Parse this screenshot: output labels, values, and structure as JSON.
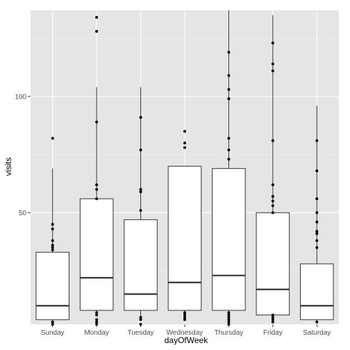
{
  "chart_data": {
    "type": "boxplot",
    "xlabel": "dayOfWeek",
    "ylabel": "visits",
    "ylim": [
      2,
      137
    ],
    "yticks": [
      50,
      100
    ],
    "y_tick_labels": [
      "50",
      "100"
    ],
    "grid": true,
    "background": "#e5e5e5",
    "categories": [
      "Sunday",
      "Monday",
      "Tuesday",
      "Wednesday",
      "Thursday",
      "Friday",
      "Saturday"
    ],
    "boxes": [
      {
        "q1": 4,
        "median": 10,
        "q3": 33,
        "whisker_low": 3,
        "whisker_high": 69,
        "outliers": [
          82,
          45,
          43,
          38,
          36,
          35,
          34,
          3,
          2
        ]
      },
      {
        "q1": 8,
        "median": 22,
        "q3": 56,
        "whisker_low": 7,
        "whisker_high": 104,
        "outliers": [
          134,
          128,
          89,
          62,
          60,
          56,
          7,
          6,
          4,
          3,
          2
        ]
      },
      {
        "q1": 8,
        "median": 15,
        "q3": 47,
        "whisker_low": 5,
        "whisker_high": 104,
        "outliers": [
          91,
          77,
          60,
          59,
          51,
          5,
          4,
          2
        ]
      },
      {
        "q1": 8,
        "median": 20,
        "q3": 70,
        "whisker_low": 7,
        "whisker_high": 70,
        "outliers": [
          85,
          80,
          78,
          7,
          6,
          5,
          4
        ]
      },
      {
        "q1": 8,
        "median": 23,
        "q3": 69,
        "whisker_low": 7,
        "whisker_high": 137,
        "outliers": [
          119,
          109,
          103,
          99,
          82,
          77,
          73,
          7,
          6,
          5,
          4,
          3,
          2
        ]
      },
      {
        "q1": 6,
        "median": 17,
        "q3": 50,
        "whisker_low": 6,
        "whisker_high": 135,
        "outliers": [
          123,
          114,
          111,
          81,
          62,
          57,
          55,
          53,
          50,
          6,
          5,
          4,
          3
        ]
      },
      {
        "q1": 4,
        "median": 10,
        "q3": 28,
        "whisker_low": 3,
        "whisker_high": 96,
        "outliers": [
          81,
          68,
          56,
          50,
          46,
          42,
          41,
          38,
          35,
          3
        ]
      }
    ]
  },
  "colors": {
    "panel_background": "#e5e5e5",
    "grid": "#ffffff",
    "box_fill": "#ffffff",
    "box_stroke": "#333333",
    "point": "#000000"
  }
}
